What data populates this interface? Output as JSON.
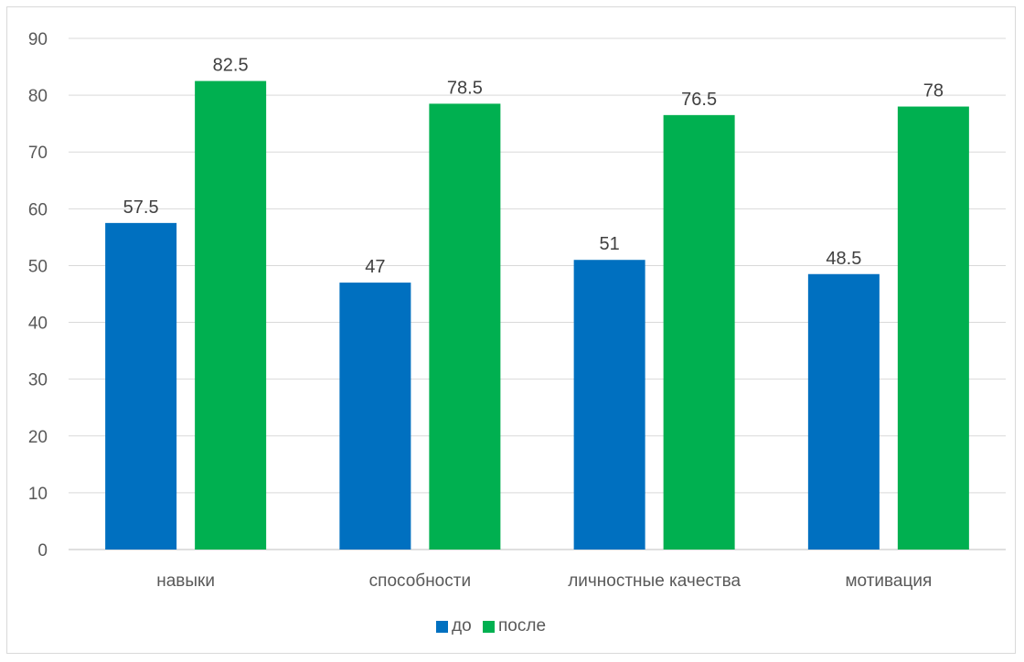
{
  "chart_data": {
    "type": "bar",
    "title": "",
    "xlabel": "",
    "ylabel": "",
    "categories": [
      "навыки",
      "способности",
      "личностные качества",
      "мотивация"
    ],
    "series": [
      {
        "name": "до",
        "values": [
          57.5,
          47,
          51,
          48.5
        ],
        "color": "#0070c0"
      },
      {
        "name": "после",
        "values": [
          82.5,
          78.5,
          76.5,
          78
        ],
        "color": "#00b050"
      }
    ],
    "ylim": [
      0,
      90
    ],
    "yticks": [
      0,
      10,
      20,
      30,
      40,
      50,
      60,
      70,
      80,
      90
    ],
    "data_labels": [
      "57.5",
      "47",
      "51",
      "48.5",
      "82.5",
      "78.5",
      "76.5",
      "78"
    ],
    "grid": true,
    "legend": "bottom"
  }
}
